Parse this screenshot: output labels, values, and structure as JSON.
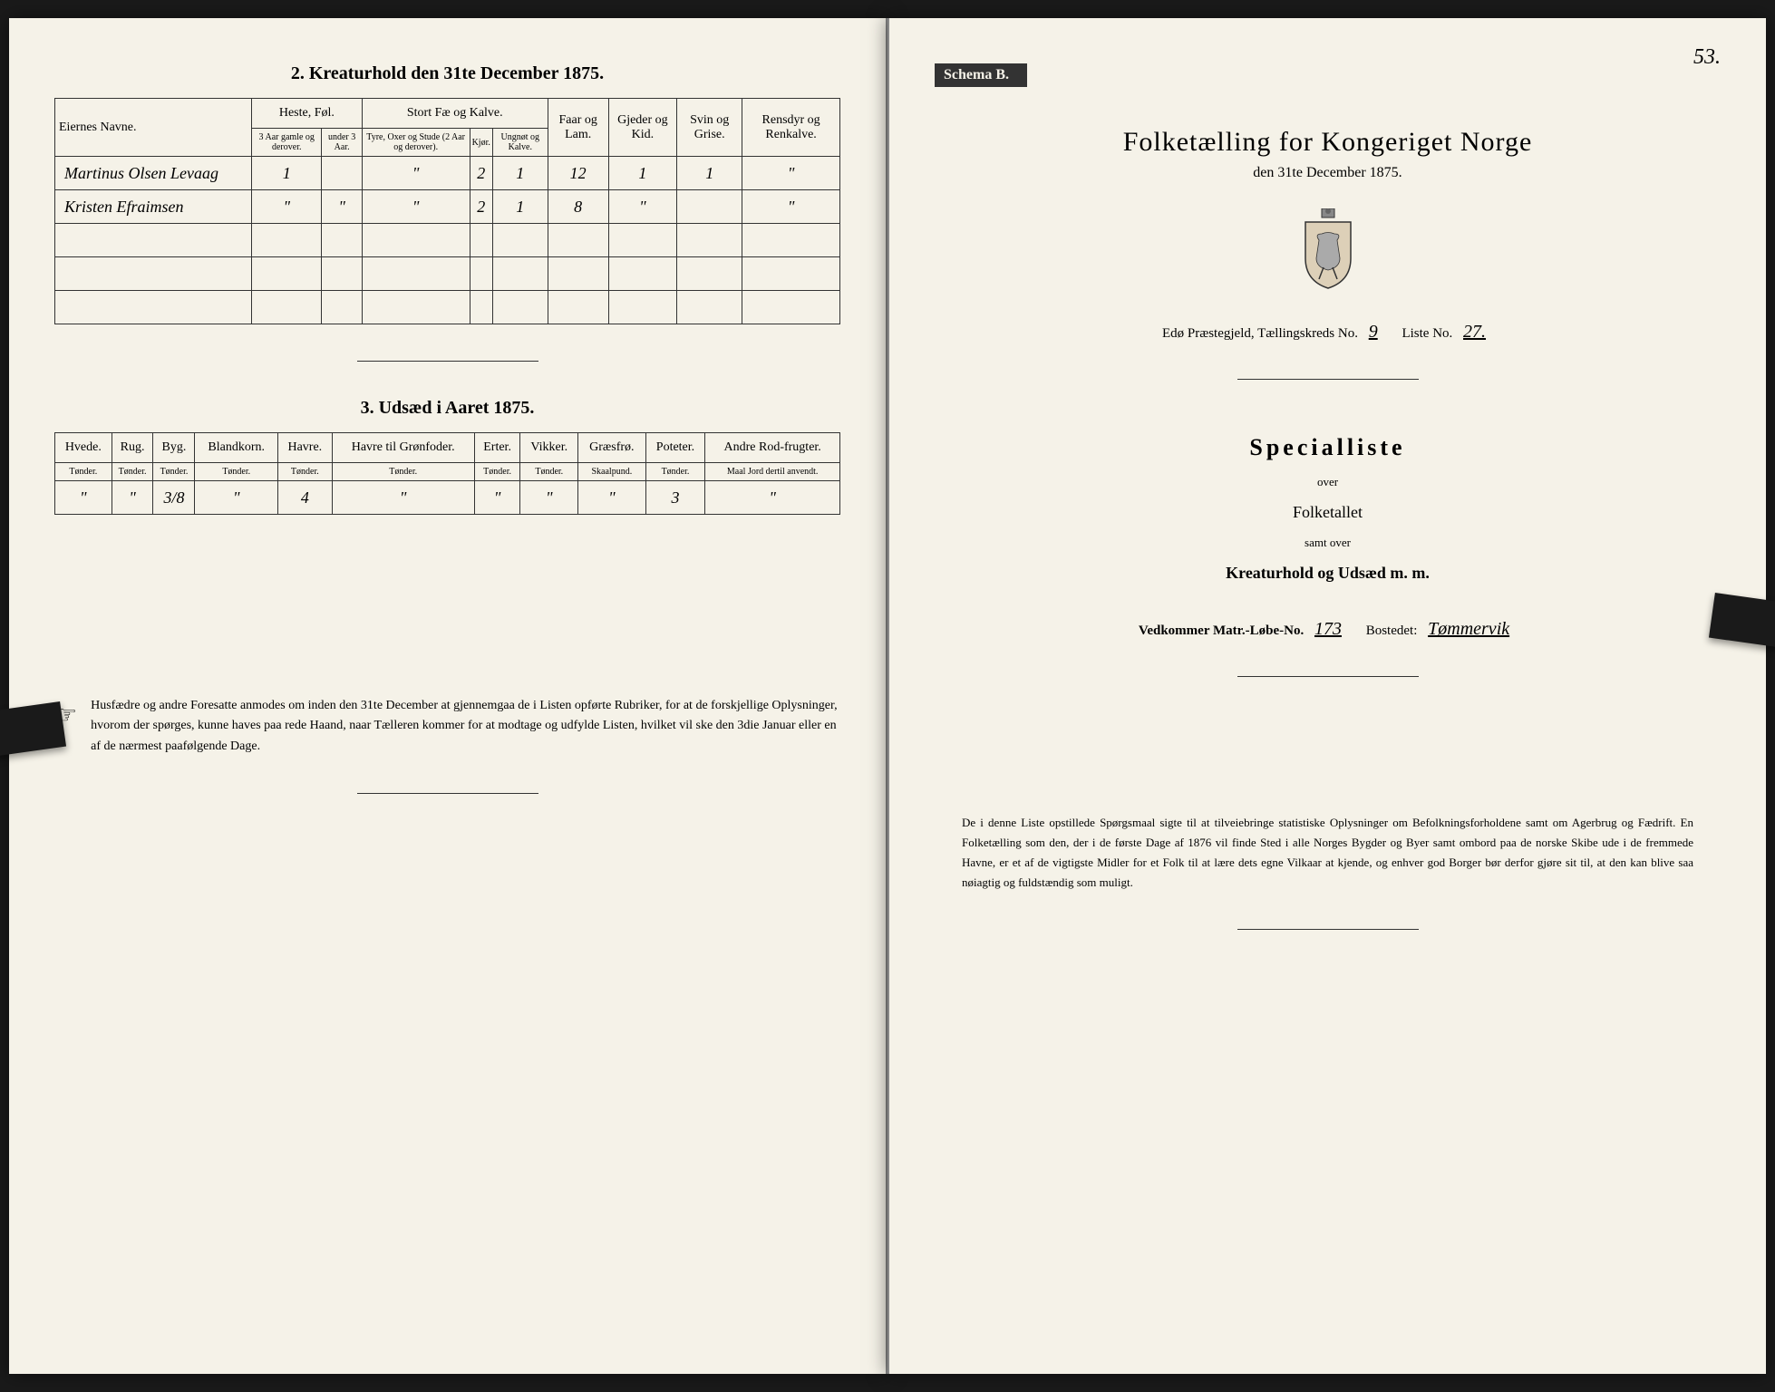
{
  "left": {
    "section2_title": "2. Kreaturhold den 31te December 1875.",
    "table2": {
      "name_header": "Eiernes Navne.",
      "groups": {
        "heste": "Heste, Føl.",
        "stort": "Stort Fæ og Kalve.",
        "faar": "Faar og Lam.",
        "gjeder": "Gjeder og Kid.",
        "svin": "Svin og Grise.",
        "rensdyr": "Rensdyr og Renkalve."
      },
      "subs": {
        "heste1": "3 Aar gamle og derover.",
        "heste2": "under 3 Aar.",
        "stort1": "Tyre, Oxer og Stude (2 Aar og derover).",
        "stort2": "Kjør.",
        "stort3": "Ungnøt og Kalve."
      },
      "rows": [
        {
          "name": "Martinus Olsen Levaag",
          "c1": "1",
          "c2": "",
          "c3": "\"",
          "c4": "2",
          "c5": "1",
          "c6": "12",
          "c7": "1",
          "c8": "1",
          "c9": "\""
        },
        {
          "name": "Kristen Efraimsen",
          "c1": "\"",
          "c2": "\"",
          "c3": "\"",
          "c4": "2",
          "c5": "1",
          "c6": "8",
          "c7": "\"",
          "c8": "",
          "c9": "\""
        },
        {
          "name": "",
          "c1": "",
          "c2": "",
          "c3": "",
          "c4": "",
          "c5": "",
          "c6": "",
          "c7": "",
          "c8": "",
          "c9": ""
        },
        {
          "name": "",
          "c1": "",
          "c2": "",
          "c3": "",
          "c4": "",
          "c5": "",
          "c6": "",
          "c7": "",
          "c8": "",
          "c9": ""
        },
        {
          "name": "",
          "c1": "",
          "c2": "",
          "c3": "",
          "c4": "",
          "c5": "",
          "c6": "",
          "c7": "",
          "c8": "",
          "c9": ""
        }
      ]
    },
    "section3_title": "3. Udsæd i Aaret 1875.",
    "table3": {
      "headers": [
        "Hvede.",
        "Rug.",
        "Byg.",
        "Blandkorn.",
        "Havre.",
        "Havre til Grønfoder.",
        "Erter.",
        "Vikker.",
        "Græsfrø.",
        "Poteter.",
        "Andre Rod-frugter."
      ],
      "units": [
        "Tønder.",
        "Tønder.",
        "Tønder.",
        "Tønder.",
        "Tønder.",
        "Tønder.",
        "Tønder.",
        "Tønder.",
        "Skaalpund.",
        "Tønder.",
        "Maal Jord dertil anvendt."
      ],
      "row": [
        "\"",
        "\"",
        "3/8",
        "\"",
        "4",
        "\"",
        "\"",
        "\"",
        "\"",
        "3",
        "\""
      ]
    },
    "footer": "Husfædre og andre Foresatte anmodes om inden den 31te December at gjennemgaa de i Listen opførte Rubriker, for at de forskjellige Oplysninger, hvorom der spørges, kunne haves paa rede Haand, naar Tælleren kommer for at modtage og udfylde Listen, hvilket vil ske den 3die Januar eller en af de nærmest paafølgende Dage."
  },
  "right": {
    "page_number": "53.",
    "schema": "Schema B.",
    "main_title": "Folketælling for Kongeriget Norge",
    "sub_title": "den 31te December 1875.",
    "meta": {
      "praestegjeld_label": "Edø Præstegjeld, Tællingskreds No.",
      "kreds_no": "9",
      "liste_label": "Liste No.",
      "liste_no": "27."
    },
    "special": "Specialliste",
    "over": "over",
    "folketallet": "Folketallet",
    "samt_over": "samt over",
    "kreatur": "Kreaturhold og Udsæd m. m.",
    "vedkommer": {
      "label1": "Vedkommer Matr.-Løbe-No.",
      "matr_no": "173",
      "label2": "Bostedet:",
      "bosted": "Tømmervik"
    },
    "footer": "De i denne Liste opstillede Spørgsmaal sigte til at tilveiebringe statistiske Oplysninger om Befolkningsforholdene samt om Agerbrug og Fædrift. En Folketælling som den, der i de første Dage af 1876 vil finde Sted i alle Norges Bygder og Byer samt ombord paa de norske Skibe ude i de fremmede Havne, er et af de vigtigste Midler for et Folk til at lære dets egne Vilkaar at kjende, og enhver god Borger bør derfor gjøre sit til, at den kan blive saa nøiagtig og fuldstændig som muligt."
  }
}
